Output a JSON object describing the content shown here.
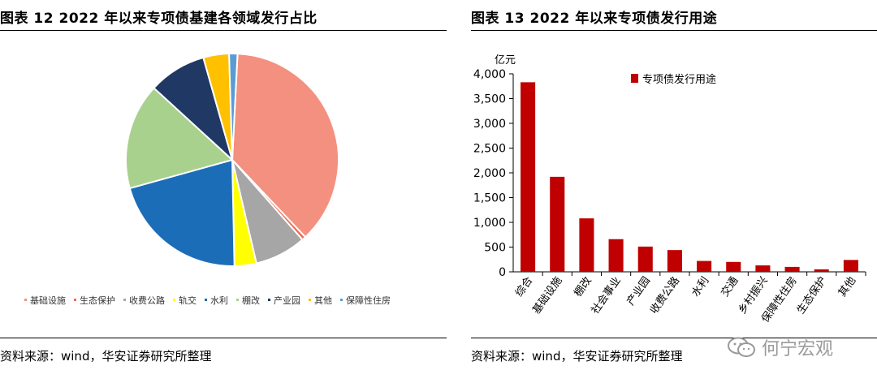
{
  "left_panel": {
    "title": "图表 12 2022 年以来专项债基建各领域发行占比",
    "source": "资料来源：wind，华安证券研究所整理"
  },
  "right_panel": {
    "title": "图表 13 2022 年以来专项债发行用途",
    "source": "资料来源：wind，华安证券研究所整理",
    "unit_label": "亿元"
  },
  "watermark": {
    "text": "何宁宏观",
    "icon": "wechat-icon"
  },
  "chart_data": [
    {
      "type": "pie",
      "title": "",
      "legend_position": "bottom",
      "slices": [
        {
          "label": "基础设施",
          "value": 38.0,
          "color": "#F4907F"
        },
        {
          "label": "生态保护",
          "value": 0.6,
          "color": "#F06A54"
        },
        {
          "label": "收费公路",
          "value": 8.0,
          "color": "#A6A6A6"
        },
        {
          "label": "轨交",
          "value": 3.4,
          "color": "#FFFF00"
        },
        {
          "label": "水利",
          "value": 21.5,
          "color": "#1C6DB8"
        },
        {
          "label": "棚改",
          "value": 16.5,
          "color": "#A9D18E"
        },
        {
          "label": "产业园",
          "value": 9.0,
          "color": "#203864"
        },
        {
          "label": "其他",
          "value": 4.0,
          "color": "#FFC000"
        },
        {
          "label": "保障性住房",
          "value": 1.3,
          "color": "#5B9BD5"
        }
      ]
    },
    {
      "type": "bar",
      "title": "",
      "ylabel": "亿元",
      "ylim": [
        0,
        4000
      ],
      "yticks": [
        0,
        500,
        1000,
        1500,
        2000,
        2500,
        3000,
        3500,
        4000
      ],
      "ytick_labels": [
        "0",
        "500",
        "1,000",
        "1,500",
        "2,000",
        "2,500",
        "3,000",
        "3,500",
        "4,000"
      ],
      "grid": false,
      "legend_position": "top-right",
      "categories": [
        "综合",
        "基础设施",
        "棚改",
        "社会事业",
        "产业园",
        "收费公路",
        "水利",
        "交通",
        "乡村振兴",
        "保障性住房",
        "生态保护",
        "其他"
      ],
      "series": [
        {
          "name": "专项债发行用途",
          "color": "#C00000",
          "values": [
            3830,
            1920,
            1080,
            660,
            510,
            440,
            220,
            200,
            130,
            100,
            50,
            240
          ]
        }
      ]
    }
  ]
}
